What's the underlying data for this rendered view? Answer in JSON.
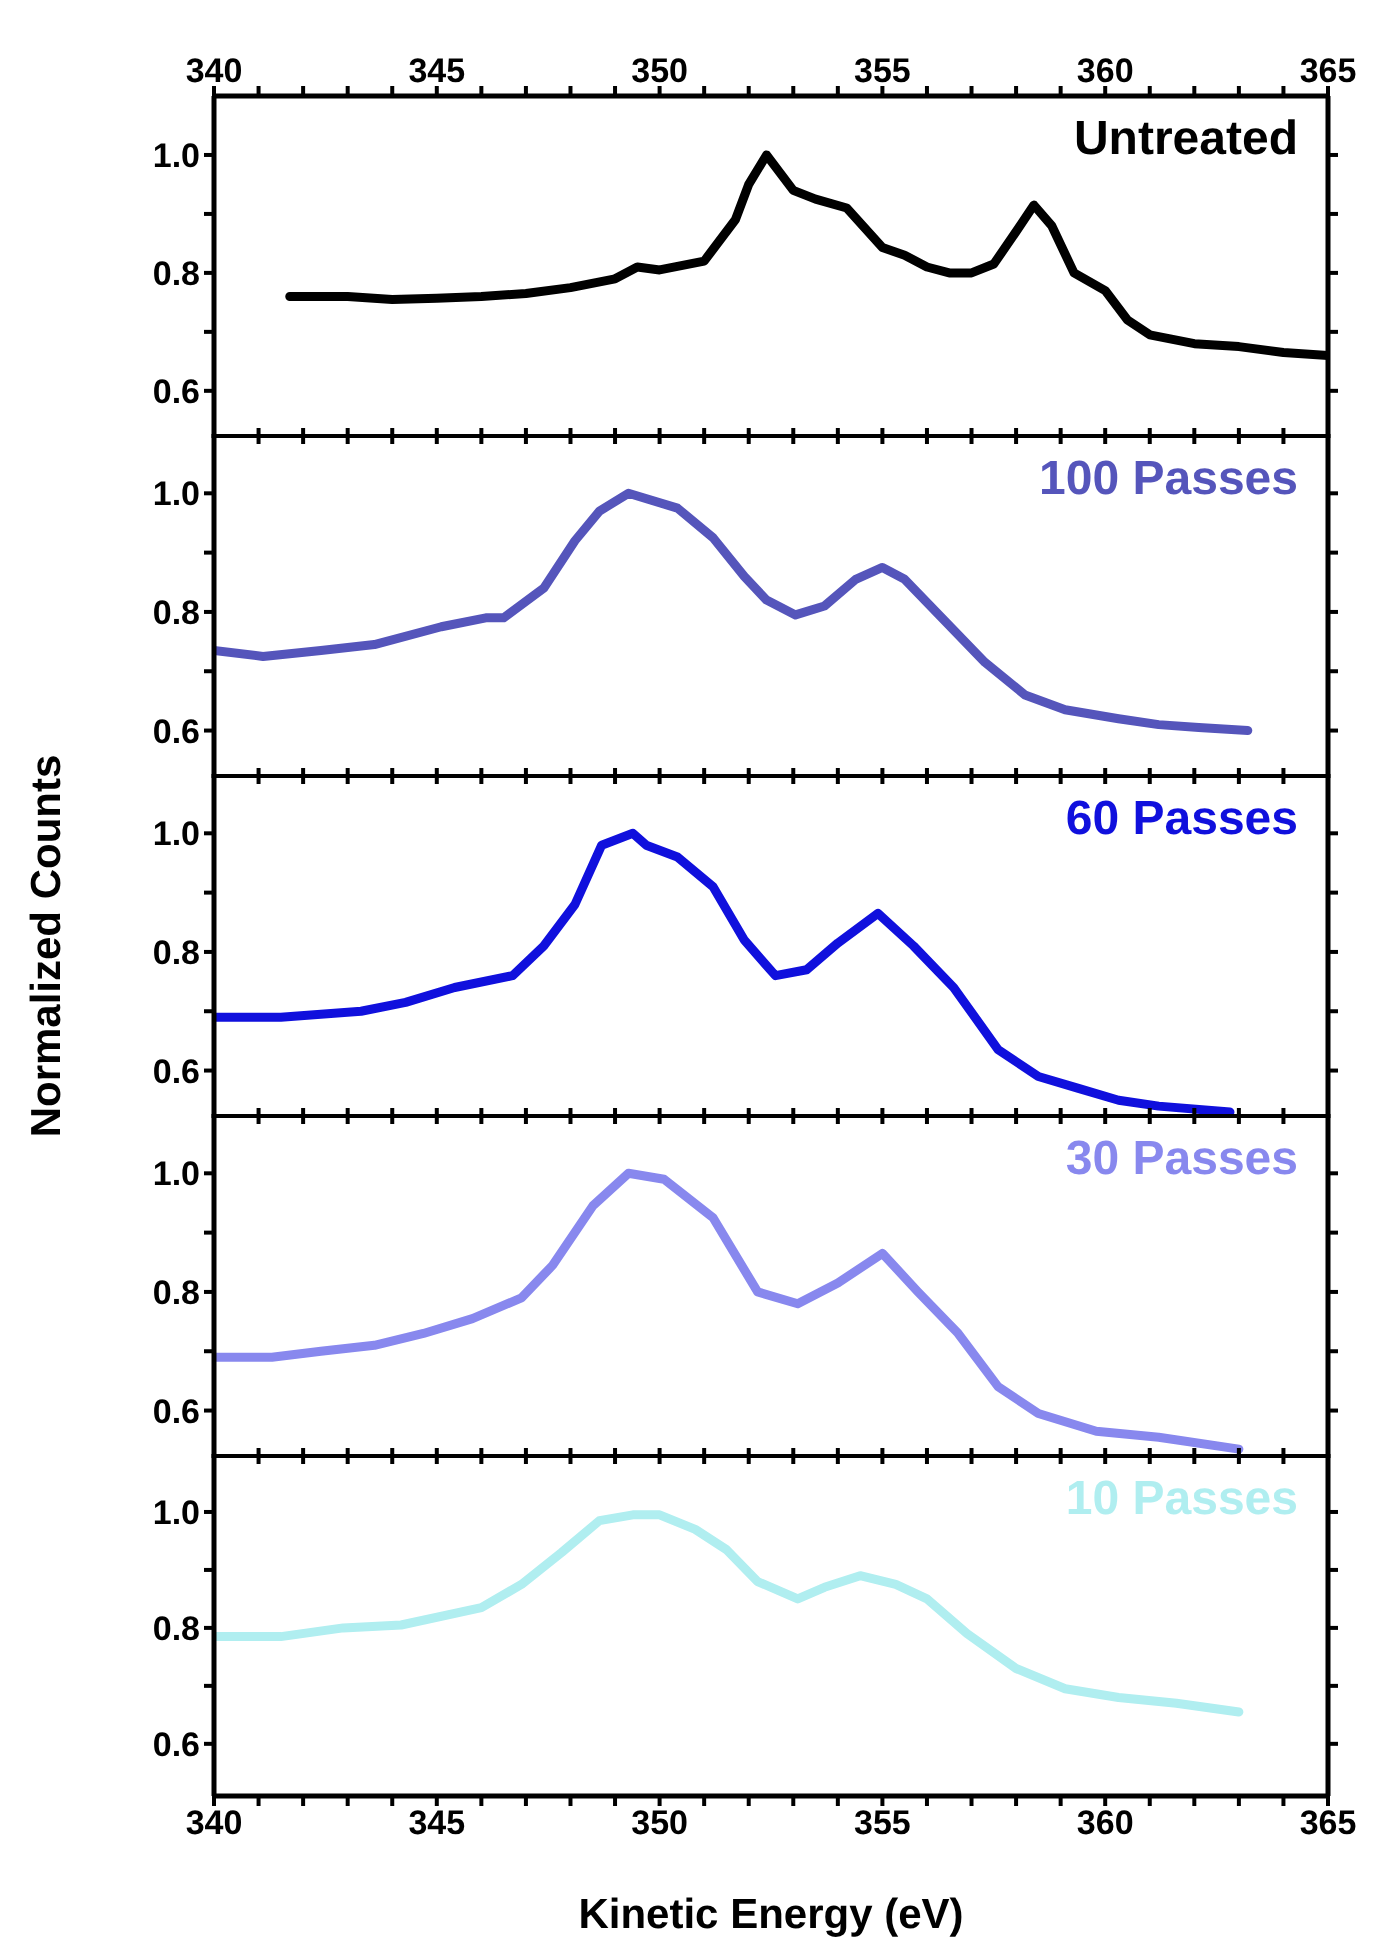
{
  "chart_data": [
    {
      "type": "line",
      "xlim": [
        340,
        365
      ],
      "xticks": [
        340,
        {
          "value": 341,
          "label": null
        },
        {
          "value": 342,
          "label": null
        },
        {
          "value": 343,
          "label": null
        },
        {
          "value": 344,
          "label": null
        },
        345,
        {
          "value": 346,
          "label": null
        },
        {
          "value": 347,
          "label": null
        },
        {
          "value": 348,
          "label": null
        },
        {
          "value": 349,
          "label": null
        },
        350,
        {
          "value": 351,
          "label": null
        },
        {
          "value": 352,
          "label": null
        },
        {
          "value": 353,
          "label": null
        },
        {
          "value": 354,
          "label": null
        },
        355,
        {
          "value": 356,
          "label": null
        },
        {
          "value": 357,
          "label": null
        },
        {
          "value": 358,
          "label": null
        },
        {
          "value": 359,
          "label": null
        },
        360,
        {
          "value": 361,
          "label": null
        },
        {
          "value": 362,
          "label": null
        },
        {
          "value": 363,
          "label": null
        },
        {
          "value": 364,
          "label": null
        },
        365
      ],
      "x2lim": [
        340,
        365
      ],
      "x2ticks": [
        340,
        {
          "value": 341,
          "label": null
        },
        {
          "value": 342,
          "label": null
        },
        {
          "value": 343,
          "label": null
        },
        {
          "value": 344,
          "label": null
        },
        345,
        {
          "value": 346,
          "label": null
        },
        {
          "value": 347,
          "label": null
        },
        {
          "value": 348,
          "label": null
        },
        {
          "value": 349,
          "label": null
        },
        350,
        {
          "value": 351,
          "label": null
        },
        {
          "value": 352,
          "label": null
        },
        {
          "value": 353,
          "label": null
        },
        {
          "value": 354,
          "label": null
        },
        355,
        {
          "value": 356,
          "label": null
        },
        {
          "value": 357,
          "label": null
        },
        {
          "value": 358,
          "label": null
        },
        {
          "value": 359,
          "label": null
        },
        360,
        {
          "value": 361,
          "label": null
        },
        {
          "value": 362,
          "label": null
        },
        {
          "value": 363,
          "label": null
        },
        {
          "value": 364,
          "label": null
        },
        365
      ],
      "ylim": [
        0.52,
        1.1
      ],
      "yticks": [
        {
          "value": 0.6,
          "label": "0.6"
        },
        {
          "value": 0.7,
          "label": null
        },
        {
          "value": 0.8,
          "label": "0.8"
        },
        {
          "value": 0.9,
          "label": null
        },
        {
          "value": 1,
          "label": "1.0"
        }
      ],
      "tick_labels": "y",
      "series": [
        {
          "name": "Untreated",
          "color": "#000000",
          "x": [
            341.7,
            343,
            344,
            345,
            346,
            347,
            348,
            349,
            349.5,
            350,
            351,
            351.2,
            351.7,
            352,
            352.4,
            353,
            353.5,
            354.2,
            355,
            355.5,
            356,
            356.5,
            357,
            357.5,
            358,
            358.4,
            358.8,
            359.3,
            360,
            360.5,
            361,
            362,
            363,
            364,
            365
          ],
          "values": [
            0.76,
            0.76,
            0.755,
            0.757,
            0.76,
            0.765,
            0.775,
            0.79,
            0.81,
            0.805,
            0.82,
            0.84,
            0.89,
            0.95,
            1.0,
            0.94,
            0.925,
            0.91,
            0.843,
            0.83,
            0.81,
            0.8,
            0.8,
            0.815,
            0.87,
            0.915,
            0.88,
            0.8,
            0.77,
            0.72,
            0.695,
            0.68,
            0.675,
            0.665,
            0.66
          ]
        }
      ]
    },
    {
      "type": "line",
      "xlim": [
        340,
        365
      ],
      "xticks": [
        340,
        {
          "value": 341,
          "label": null
        },
        {
          "value": 342,
          "label": null
        },
        {
          "value": 343,
          "label": null
        },
        {
          "value": 344,
          "label": null
        },
        345,
        {
          "value": 346,
          "label": null
        },
        {
          "value": 347,
          "label": null
        },
        {
          "value": 348,
          "label": null
        },
        {
          "value": 349,
          "label": null
        },
        350,
        {
          "value": 351,
          "label": null
        },
        {
          "value": 352,
          "label": null
        },
        {
          "value": 353,
          "label": null
        },
        {
          "value": 354,
          "label": null
        },
        355,
        {
          "value": 356,
          "label": null
        },
        {
          "value": 357,
          "label": null
        },
        {
          "value": 358,
          "label": null
        },
        {
          "value": 359,
          "label": null
        },
        360,
        {
          "value": 361,
          "label": null
        },
        {
          "value": 362,
          "label": null
        },
        {
          "value": 363,
          "label": null
        },
        {
          "value": 364,
          "label": null
        },
        365
      ],
      "ylim": [
        0.52,
        1.1
      ],
      "yticks": [
        {
          "value": 0.6,
          "label": "0.6"
        },
        {
          "value": 0.7,
          "label": null
        },
        {
          "value": 0.8,
          "label": "0.8"
        },
        {
          "value": 0.9,
          "label": null
        },
        {
          "value": 1,
          "label": "1.0"
        }
      ],
      "tick_labels": "y",
      "series": [
        {
          "name": "100 Passes",
          "color": "#5555bb",
          "x": [
            340,
            341.1,
            342.4,
            343.6,
            345.1,
            346.1,
            346.5,
            347.4,
            348.1,
            348.65,
            349.3,
            350.4,
            351.2,
            351.9,
            352.4,
            353.05,
            353.7,
            354.4,
            355,
            355.5,
            356.4,
            357.3,
            358.2,
            359.1,
            360.3,
            361.2,
            362.1,
            363.2
          ],
          "values": [
            0.735,
            0.725,
            0.735,
            0.745,
            0.775,
            0.79,
            0.79,
            0.84,
            0.92,
            0.97,
            1.0,
            0.975,
            0.925,
            0.86,
            0.82,
            0.795,
            0.81,
            0.855,
            0.875,
            0.855,
            0.785,
            0.715,
            0.66,
            0.635,
            0.62,
            0.61,
            0.605,
            0.6
          ]
        }
      ]
    },
    {
      "type": "line",
      "xlim": [
        340,
        365
      ],
      "xticks": [
        340,
        {
          "value": 341,
          "label": null
        },
        {
          "value": 342,
          "label": null
        },
        {
          "value": 343,
          "label": null
        },
        {
          "value": 344,
          "label": null
        },
        345,
        {
          "value": 346,
          "label": null
        },
        {
          "value": 347,
          "label": null
        },
        {
          "value": 348,
          "label": null
        },
        {
          "value": 349,
          "label": null
        },
        350,
        {
          "value": 351,
          "label": null
        },
        {
          "value": 352,
          "label": null
        },
        {
          "value": 353,
          "label": null
        },
        {
          "value": 354,
          "label": null
        },
        355,
        {
          "value": 356,
          "label": null
        },
        {
          "value": 357,
          "label": null
        },
        {
          "value": 358,
          "label": null
        },
        {
          "value": 359,
          "label": null
        },
        360,
        {
          "value": 361,
          "label": null
        },
        {
          "value": 362,
          "label": null
        },
        {
          "value": 363,
          "label": null
        },
        {
          "value": 364,
          "label": null
        },
        365
      ],
      "ylim": [
        0.52,
        1.1
      ],
      "yticks": [
        {
          "value": 0.6,
          "label": "0.6"
        },
        {
          "value": 0.7,
          "label": null
        },
        {
          "value": 0.8,
          "label": "0.8"
        },
        {
          "value": 0.9,
          "label": null
        },
        {
          "value": 1,
          "label": "1.0"
        }
      ],
      "tick_labels": "y",
      "ylabel": "Normalized Counts",
      "series": [
        {
          "name": "60 Passes",
          "color": "#1010dd",
          "x": [
            340,
            341.5,
            343.3,
            344.3,
            345.4,
            346.7,
            347.4,
            348.1,
            348.7,
            349.4,
            349.7,
            350.4,
            351.2,
            351.9,
            352.6,
            353.3,
            354,
            354.9,
            355.7,
            356.6,
            357.6,
            358.5,
            359.4,
            360.3,
            361.2,
            362.8
          ],
          "values": [
            0.69,
            0.69,
            0.7,
            0.715,
            0.74,
            0.76,
            0.81,
            0.88,
            0.98,
            1.0,
            0.98,
            0.96,
            0.91,
            0.82,
            0.76,
            0.77,
            0.815,
            0.865,
            0.81,
            0.74,
            0.635,
            0.59,
            0.57,
            0.55,
            0.54,
            0.53
          ]
        }
      ]
    },
    {
      "type": "line",
      "xlim": [
        340,
        365
      ],
      "xticks": [
        340,
        {
          "value": 341,
          "label": null
        },
        {
          "value": 342,
          "label": null
        },
        {
          "value": 343,
          "label": null
        },
        {
          "value": 344,
          "label": null
        },
        345,
        {
          "value": 346,
          "label": null
        },
        {
          "value": 347,
          "label": null
        },
        {
          "value": 348,
          "label": null
        },
        {
          "value": 349,
          "label": null
        },
        350,
        {
          "value": 351,
          "label": null
        },
        {
          "value": 352,
          "label": null
        },
        {
          "value": 353,
          "label": null
        },
        {
          "value": 354,
          "label": null
        },
        355,
        {
          "value": 356,
          "label": null
        },
        {
          "value": 357,
          "label": null
        },
        {
          "value": 358,
          "label": null
        },
        {
          "value": 359,
          "label": null
        },
        360,
        {
          "value": 361,
          "label": null
        },
        {
          "value": 362,
          "label": null
        },
        {
          "value": 363,
          "label": null
        },
        {
          "value": 364,
          "label": null
        },
        365
      ],
      "ylim": [
        0.52,
        1.1
      ],
      "yticks": [
        {
          "value": 0.6,
          "label": "0.6"
        },
        {
          "value": 0.7,
          "label": null
        },
        {
          "value": 0.8,
          "label": "0.8"
        },
        {
          "value": 0.9,
          "label": null
        },
        {
          "value": 1,
          "label": "1.0"
        }
      ],
      "tick_labels": "y",
      "series": [
        {
          "name": "30 Passes",
          "color": "#8888ee",
          "x": [
            340,
            341.3,
            342.4,
            343.6,
            344.7,
            345.8,
            346.9,
            347.6,
            348.5,
            349.3,
            350.1,
            351.2,
            352.2,
            353.1,
            354,
            355,
            355.8,
            356.7,
            357.6,
            358.5,
            359.8,
            361.2,
            363
          ],
          "values": [
            0.69,
            0.69,
            0.7,
            0.71,
            0.73,
            0.755,
            0.79,
            0.845,
            0.945,
            1.0,
            0.99,
            0.925,
            0.8,
            0.78,
            0.815,
            0.865,
            0.8,
            0.73,
            0.64,
            0.595,
            0.565,
            0.555,
            0.535
          ]
        }
      ]
    },
    {
      "type": "line",
      "xlim": [
        340,
        365
      ],
      "xticks": [
        340,
        {
          "value": 341,
          "label": null
        },
        {
          "value": 342,
          "label": null
        },
        {
          "value": 343,
          "label": null
        },
        {
          "value": 344,
          "label": null
        },
        345,
        {
          "value": 346,
          "label": null
        },
        {
          "value": 347,
          "label": null
        },
        {
          "value": 348,
          "label": null
        },
        {
          "value": 349,
          "label": null
        },
        350,
        {
          "value": 351,
          "label": null
        },
        {
          "value": 352,
          "label": null
        },
        {
          "value": 353,
          "label": null
        },
        {
          "value": 354,
          "label": null
        },
        355,
        {
          "value": 356,
          "label": null
        },
        {
          "value": 357,
          "label": null
        },
        {
          "value": 358,
          "label": null
        },
        {
          "value": 359,
          "label": null
        },
        360,
        {
          "value": 361,
          "label": null
        },
        {
          "value": 362,
          "label": null
        },
        {
          "value": 363,
          "label": null
        },
        {
          "value": 364,
          "label": null
        },
        365
      ],
      "ylim": [
        0.51,
        1.1
      ],
      "yticks": [
        {
          "value": 0.6,
          "label": "0.6"
        },
        {
          "value": 0.7,
          "label": null
        },
        {
          "value": 0.8,
          "label": "0.8"
        },
        {
          "value": 0.9,
          "label": null
        },
        {
          "value": 1,
          "label": "1.0"
        }
      ],
      "xlabel": "Kinetic Energy (eV)",
      "series": [
        {
          "name": "10 Passes",
          "color": "#b0eef0",
          "x": [
            340,
            341.5,
            342.9,
            344.2,
            346,
            346.9,
            347.8,
            348.65,
            349.4,
            350,
            350.8,
            351.5,
            352.2,
            353.1,
            353.7,
            354.5,
            355.3,
            356,
            356.9,
            358,
            359.1,
            360.3,
            361.6,
            363
          ],
          "values": [
            0.785,
            0.785,
            0.8,
            0.805,
            0.835,
            0.875,
            0.93,
            0.985,
            0.995,
            0.995,
            0.97,
            0.935,
            0.88,
            0.85,
            0.87,
            0.89,
            0.875,
            0.85,
            0.79,
            0.73,
            0.695,
            0.68,
            0.67,
            0.655
          ]
        }
      ]
    }
  ]
}
